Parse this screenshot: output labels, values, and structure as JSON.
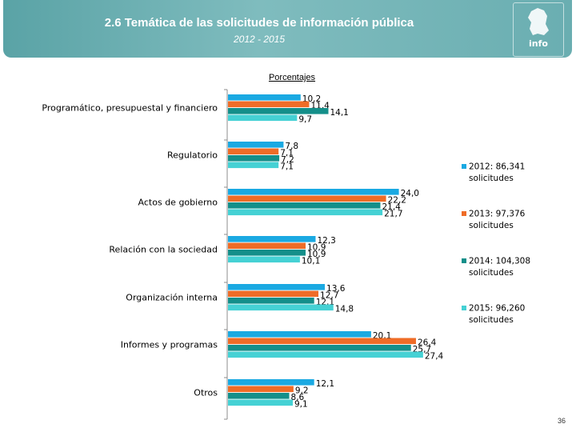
{
  "header": {
    "title": "2.6 Temática de las solicitudes de información pública",
    "subtitle": "2012 - 2015",
    "logo_text": "info"
  },
  "page_number": "36",
  "chart_data": {
    "type": "bar",
    "orientation": "horizontal",
    "title": "Porcentajes",
    "xlabel": "",
    "ylabel": "",
    "xlim": [
      0,
      30
    ],
    "grid": false,
    "legend_position": "right",
    "categories": [
      "Programático, presupuestal y financiero",
      "Regulatorio",
      "Actos de gobierno",
      "Relación con la sociedad",
      "Organización interna",
      "Informes y programas",
      "Otros"
    ],
    "series": [
      {
        "name": "2012",
        "legend_line1": "2012: 86,341",
        "legend_line2": "solicitudes",
        "color": "#1aa9e2",
        "values": [
          10.2,
          7.8,
          24.0,
          12.3,
          13.6,
          20.1,
          12.1
        ],
        "labels": [
          "10,2",
          "7,8",
          "24,0",
          "12,3",
          "13,6",
          "20,1",
          "12,1"
        ]
      },
      {
        "name": "2013",
        "legend_line1": "2013: 97,376",
        "legend_line2": "solicitudes",
        "color": "#ef6c27",
        "values": [
          11.4,
          7.1,
          22.2,
          10.9,
          12.7,
          26.4,
          9.2
        ],
        "labels": [
          "11,4",
          "7,1",
          "22,2",
          "10,9",
          "12,7",
          "26,4",
          "9,2"
        ]
      },
      {
        "name": "2014",
        "legend_line1": "2014: 104,308",
        "legend_line2": "solicitudes",
        "color": "#148f8a",
        "values": [
          14.1,
          7.2,
          21.4,
          10.9,
          12.1,
          25.7,
          8.6
        ],
        "labels": [
          "14,1",
          "7,2",
          "21,4",
          "10,9",
          "12,1",
          "25,7",
          "8,6"
        ]
      },
      {
        "name": "2015",
        "legend_line1": "2015: 96,260",
        "legend_line2": "solicitudes",
        "color": "#45d1d4",
        "values": [
          9.7,
          7.1,
          21.7,
          10.1,
          14.8,
          27.4,
          9.1
        ],
        "labels": [
          "9,7",
          "7,1",
          "21,7",
          "10,1",
          "14,8",
          "27,4",
          "9,1"
        ]
      }
    ]
  }
}
